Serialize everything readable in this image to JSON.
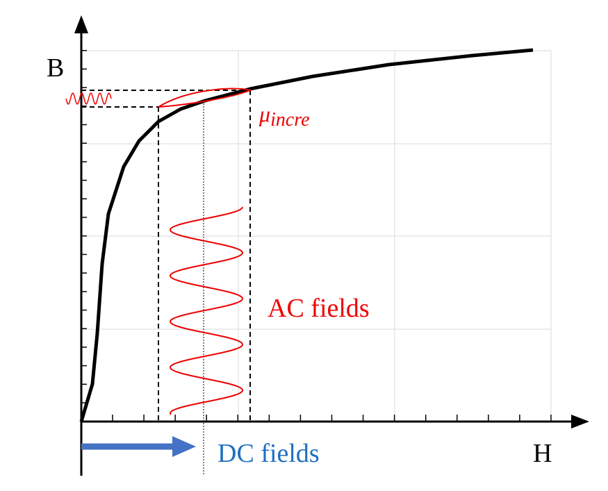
{
  "axes": {
    "y_label": "B",
    "x_label": "H"
  },
  "annotations": {
    "mu_symbol": "μ",
    "mu_subscript": "incre",
    "ac_label": "AC fields",
    "dc_label": "DC fields"
  }
}
